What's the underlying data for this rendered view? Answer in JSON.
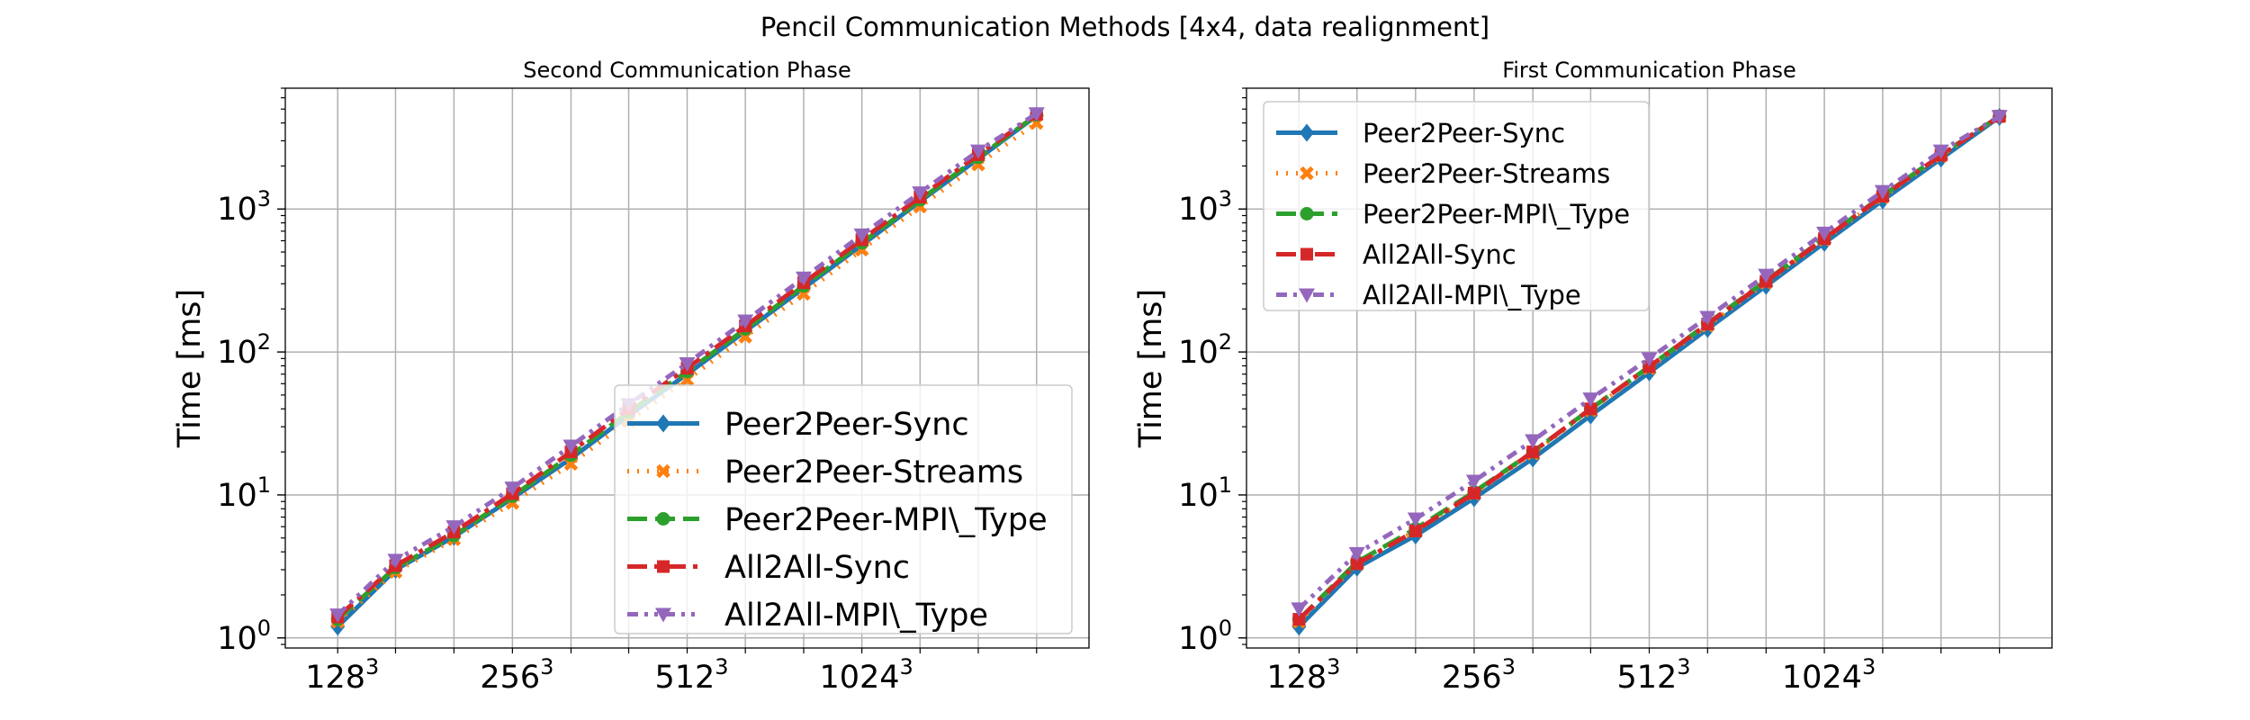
{
  "figure": {
    "title": "Pencil Communication Methods [4x4, data realignment]"
  },
  "chart_data": [
    {
      "type": "line",
      "title": "Second Communication Phase",
      "xlabel": "",
      "ylabel": "Time [ms]",
      "yscale": "log",
      "ylim": [
        0.85,
        7000
      ],
      "grid": true,
      "legend_position": "lower-right",
      "x": [
        128,
        161,
        203,
        256,
        323,
        406,
        512,
        645,
        813,
        1024,
        1290,
        1625,
        2048
      ],
      "x_ticks": [
        {
          "value": 128,
          "base": "128",
          "exp": "3"
        },
        {
          "value": 256,
          "base": "256",
          "exp": "3"
        },
        {
          "value": 512,
          "base": "512",
          "exp": "3"
        },
        {
          "value": 1024,
          "base": "1024",
          "exp": "3"
        }
      ],
      "y_ticks": [
        {
          "value": 1,
          "base": "10",
          "exp": "0"
        },
        {
          "value": 10,
          "base": "10",
          "exp": "1"
        },
        {
          "value": 100,
          "base": "10",
          "exp": "2"
        },
        {
          "value": 1000,
          "base": "10",
          "exp": "3"
        }
      ],
      "series": [
        {
          "name": "Peer2Peer-Sync",
          "color": "#1f77b4",
          "dash": "solid",
          "marker": "diamond",
          "values": [
            1.2,
            3.0,
            5.1,
            9.5,
            18,
            36,
            70,
            140,
            280,
            560,
            1130,
            2250,
            4500
          ]
        },
        {
          "name": "Peer2Peer-Streams",
          "color": "#ff7f0e",
          "dash": "dotted",
          "marker": "x",
          "values": [
            1.3,
            2.9,
            4.9,
            8.8,
            16.5,
            33,
            64,
            128,
            255,
            520,
            1040,
            2050,
            4000
          ]
        },
        {
          "name": "Peer2Peer-MPI\\_Type",
          "color": "#2ca02c",
          "dash": "dashed",
          "marker": "circle",
          "values": [
            1.35,
            3.1,
            5.2,
            9.8,
            19,
            38,
            73,
            145,
            290,
            580,
            1160,
            2300,
            4550
          ]
        },
        {
          "name": "All2All-Sync",
          "color": "#d62728",
          "dash": "dashdot",
          "marker": "square",
          "values": [
            1.4,
            3.2,
            5.5,
            10.2,
            20,
            40,
            77,
            152,
            305,
            610,
            1210,
            2400,
            4600
          ]
        },
        {
          "name": "All2All-MPI\\_Type",
          "color": "#9467bd",
          "dash": "dashdotted",
          "marker": "triangle-down",
          "values": [
            1.45,
            3.5,
            6.0,
            11.2,
            22,
            43,
            83,
            165,
            330,
            660,
            1300,
            2550,
            4650
          ]
        }
      ]
    },
    {
      "type": "line",
      "title": "First Communication Phase",
      "xlabel": "",
      "ylabel": "Time [ms]",
      "yscale": "log",
      "ylim": [
        0.85,
        7000
      ],
      "grid": true,
      "legend_position": "upper-left",
      "x": [
        128,
        161,
        203,
        256,
        323,
        406,
        512,
        645,
        813,
        1024,
        1290,
        1625,
        2048
      ],
      "x_ticks": [
        {
          "value": 128,
          "base": "128",
          "exp": "3"
        },
        {
          "value": 256,
          "base": "256",
          "exp": "3"
        },
        {
          "value": 512,
          "base": "512",
          "exp": "3"
        },
        {
          "value": 1024,
          "base": "1024",
          "exp": "3"
        }
      ],
      "y_ticks": [
        {
          "value": 1,
          "base": "10",
          "exp": "0"
        },
        {
          "value": 10,
          "base": "10",
          "exp": "1"
        },
        {
          "value": 100,
          "base": "10",
          "exp": "2"
        },
        {
          "value": 1000,
          "base": "10",
          "exp": "3"
        }
      ],
      "series": [
        {
          "name": "Peer2Peer-Sync",
          "color": "#1f77b4",
          "dash": "solid",
          "marker": "diamond",
          "values": [
            1.2,
            3.1,
            5.2,
            9.5,
            18,
            36,
            72,
            145,
            290,
            580,
            1150,
            2250,
            4400
          ]
        },
        {
          "name": "Peer2Peer-Streams",
          "color": "#ff7f0e",
          "dash": "dotted",
          "marker": "x",
          "values": [
            1.3,
            3.3,
            5.6,
            10.2,
            19.5,
            39,
            77,
            153,
            305,
            610,
            1210,
            2350,
            4450
          ]
        },
        {
          "name": "Peer2Peer-MPI\\_Type",
          "color": "#2ca02c",
          "dash": "dashed",
          "marker": "circle",
          "values": [
            1.35,
            3.4,
            5.8,
            10.5,
            20,
            40,
            79,
            158,
            315,
            625,
            1240,
            2400,
            4450
          ]
        },
        {
          "name": "All2All-Sync",
          "color": "#d62728",
          "dash": "dashdot",
          "marker": "square",
          "values": [
            1.35,
            3.3,
            5.6,
            10.3,
            20,
            40,
            79,
            157,
            312,
            620,
            1230,
            2380,
            4450
          ]
        },
        {
          "name": "All2All-MPI\\_Type",
          "color": "#9467bd",
          "dash": "dashdotted",
          "marker": "triangle-down",
          "values": [
            1.6,
            3.9,
            6.8,
            12.5,
            24,
            47,
            90,
            175,
            345,
            680,
            1330,
            2550,
            4450
          ]
        }
      ]
    }
  ]
}
